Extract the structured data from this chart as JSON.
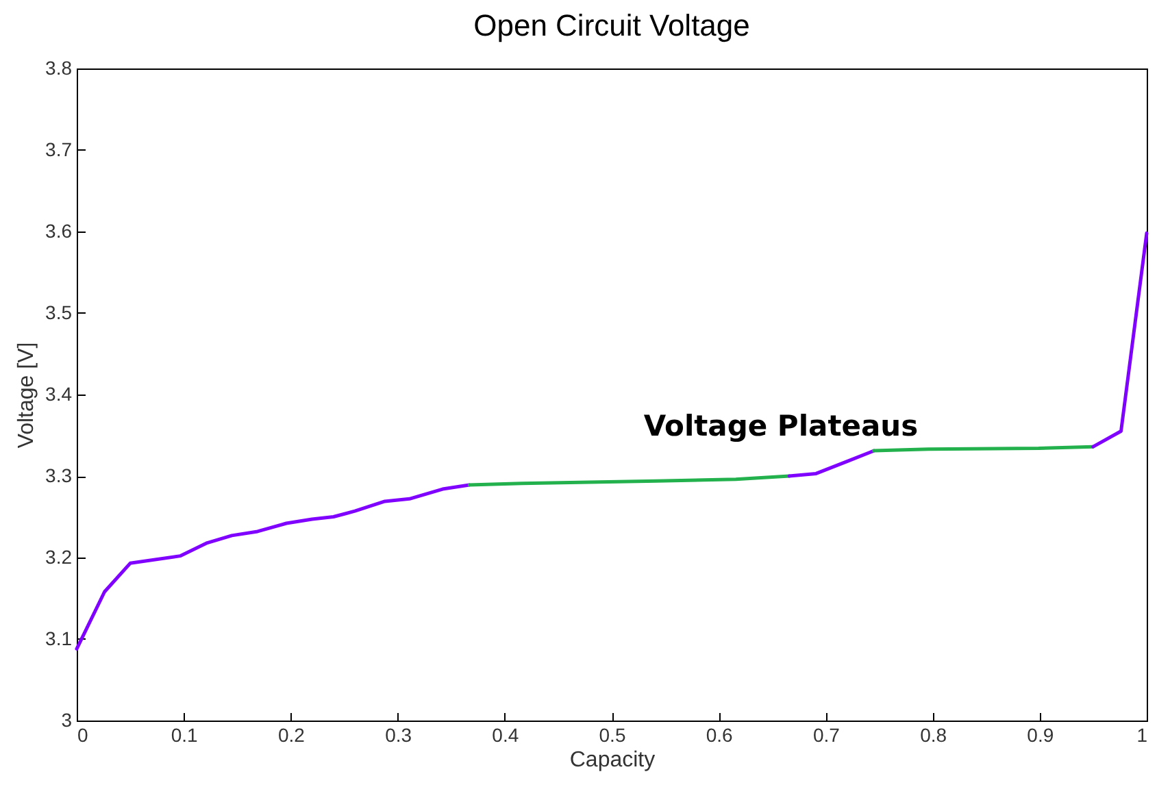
{
  "chart_data": {
    "type": "line",
    "title": "Open Circuit Voltage",
    "xlabel": "Capacity",
    "ylabel": "Voltage [V]",
    "series": [
      {
        "color": "#8000ff",
        "x": [
          0,
          0.026,
          0.05,
          0.097,
          0.122,
          0.145,
          0.169,
          0.196,
          0.22,
          0.24,
          0.26,
          0.288,
          0.311,
          0.342,
          0.367
        ],
        "values": [
          3.088,
          3.158,
          3.193,
          3.202,
          3.218,
          3.227,
          3.232,
          3.242,
          3.247,
          3.25,
          3.257,
          3.269,
          3.272,
          3.284,
          3.289
        ]
      },
      {
        "color": "#22b14c",
        "x": [
          0.367,
          0.416,
          0.542,
          0.616,
          0.666
        ],
        "values": [
          3.289,
          3.291,
          3.294,
          3.296,
          3.3
        ]
      },
      {
        "color": "#8000ff",
        "x": [
          0.666,
          0.691,
          0.72,
          0.745
        ],
        "values": [
          3.3,
          3.303,
          3.318,
          3.331
        ]
      },
      {
        "color": "#22b14c",
        "x": [
          0.745,
          0.796,
          0.899,
          0.95
        ],
        "values": [
          3.331,
          3.333,
          3.334,
          3.336
        ]
      },
      {
        "color": "#8000ff",
        "x": [
          0.95,
          0.976,
          1
        ],
        "values": [
          3.336,
          3.355,
          3.598
        ]
      }
    ],
    "xlim": [
      0,
      1
    ],
    "xticks": [
      0,
      0.1,
      0.2,
      0.3,
      0.4,
      0.5,
      0.6,
      0.7,
      0.8,
      0.9,
      1
    ],
    "ylim": [
      3,
      3.8
    ],
    "yticks": [
      3,
      3.1,
      3.2,
      3.3,
      3.4,
      3.5,
      3.6,
      3.7,
      3.8
    ],
    "annotations": [
      "Voltage Plateaus"
    ],
    "grid": false,
    "legend": false
  }
}
